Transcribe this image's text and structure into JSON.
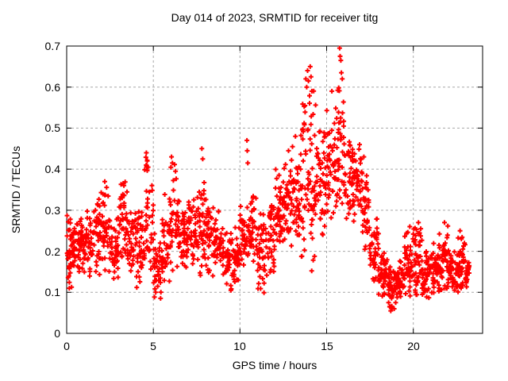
{
  "chart_data": {
    "type": "scatter",
    "title": "Day 014 of 2023, SRMTID for receiver titg",
    "xlabel": "GPS time / hours",
    "ylabel": "SRMTID / TECUs",
    "xlim": [
      0,
      24
    ],
    "ylim": [
      0,
      0.7
    ],
    "x_ticks": [
      0,
      5,
      10,
      15,
      20
    ],
    "y_ticks": [
      0,
      0.1,
      0.2,
      0.3,
      0.4,
      0.5,
      0.6,
      0.7
    ],
    "x_tick_labels": [
      "0",
      "5",
      "10",
      "15",
      "20"
    ],
    "y_tick_labels": [
      "0",
      "0.1",
      "0.2",
      "0.3",
      "0.4",
      "0.5",
      "0.6",
      "0.7"
    ],
    "grid": "dashed",
    "legend": "none",
    "marker": "plus",
    "marker_color": "#ff0000",
    "grid_color": "#a8a8a8",
    "border_color": "#000000",
    "background_color": "#ffffff",
    "data_time_range_hours": [
      0,
      23.25
    ],
    "density_bands_format": [
      "t_start_hours",
      "t_end_hours",
      "y_min_TECUs",
      "y_max_TECUs",
      "approx_point_count"
    ],
    "density_bands": [
      [
        0.0,
        0.3,
        0.1,
        0.3,
        30
      ],
      [
        0.3,
        0.5,
        0.15,
        0.28,
        22
      ],
      [
        0.5,
        1.0,
        0.14,
        0.28,
        40
      ],
      [
        1.0,
        1.5,
        0.13,
        0.31,
        40
      ],
      [
        1.5,
        2.0,
        0.14,
        0.35,
        40
      ],
      [
        2.0,
        2.5,
        0.13,
        0.37,
        40
      ],
      [
        2.5,
        3.0,
        0.12,
        0.29,
        40
      ],
      [
        3.0,
        3.5,
        0.15,
        0.37,
        40
      ],
      [
        3.5,
        4.0,
        0.14,
        0.33,
        40
      ],
      [
        4.0,
        4.5,
        0.1,
        0.31,
        40
      ],
      [
        4.5,
        5.0,
        0.15,
        0.44,
        40
      ],
      [
        5.0,
        5.5,
        0.08,
        0.26,
        40
      ],
      [
        5.5,
        6.0,
        0.12,
        0.34,
        40
      ],
      [
        6.0,
        6.5,
        0.15,
        0.42,
        40
      ],
      [
        6.5,
        7.0,
        0.15,
        0.31,
        40
      ],
      [
        7.0,
        7.5,
        0.16,
        0.34,
        40
      ],
      [
        7.5,
        8.0,
        0.13,
        0.4,
        40
      ],
      [
        8.0,
        8.5,
        0.14,
        0.35,
        40
      ],
      [
        8.5,
        9.0,
        0.13,
        0.3,
        40
      ],
      [
        9.0,
        9.5,
        0.1,
        0.26,
        40
      ],
      [
        9.5,
        10.0,
        0.12,
        0.26,
        40
      ],
      [
        10.0,
        10.5,
        0.15,
        0.32,
        40
      ],
      [
        10.5,
        11.0,
        0.17,
        0.34,
        40
      ],
      [
        11.0,
        11.5,
        0.09,
        0.3,
        40
      ],
      [
        11.5,
        12.0,
        0.13,
        0.33,
        40
      ],
      [
        12.0,
        12.5,
        0.19,
        0.4,
        40
      ],
      [
        12.5,
        13.0,
        0.2,
        0.44,
        40
      ],
      [
        13.0,
        13.5,
        0.22,
        0.46,
        40
      ],
      [
        13.5,
        14.0,
        0.18,
        0.58,
        40
      ],
      [
        14.0,
        14.5,
        0.15,
        0.6,
        42
      ],
      [
        14.5,
        15.0,
        0.22,
        0.5,
        40
      ],
      [
        15.0,
        15.5,
        0.27,
        0.55,
        40
      ],
      [
        15.5,
        16.0,
        0.28,
        0.6,
        40
      ],
      [
        16.0,
        16.5,
        0.28,
        0.48,
        40
      ],
      [
        16.5,
        17.0,
        0.25,
        0.47,
        40
      ],
      [
        17.0,
        17.5,
        0.18,
        0.42,
        40
      ],
      [
        17.5,
        18.0,
        0.12,
        0.3,
        40
      ],
      [
        18.0,
        18.5,
        0.08,
        0.2,
        42
      ],
      [
        18.5,
        19.0,
        0.06,
        0.17,
        44
      ],
      [
        19.0,
        19.5,
        0.08,
        0.18,
        44
      ],
      [
        19.5,
        20.0,
        0.09,
        0.25,
        44
      ],
      [
        20.0,
        20.5,
        0.09,
        0.26,
        44
      ],
      [
        20.5,
        21.0,
        0.08,
        0.2,
        44
      ],
      [
        21.0,
        21.5,
        0.09,
        0.22,
        44
      ],
      [
        21.5,
        22.0,
        0.1,
        0.27,
        44
      ],
      [
        22.0,
        22.5,
        0.09,
        0.22,
        44
      ],
      [
        22.5,
        23.0,
        0.1,
        0.25,
        44
      ],
      [
        23.0,
        23.25,
        0.1,
        0.18,
        22
      ]
    ],
    "peak_points_format": [
      "t_hours",
      "y_TECUs"
    ],
    "peak_points": [
      [
        0.15,
        0.11
      ],
      [
        2.2,
        0.37
      ],
      [
        3.3,
        0.36
      ],
      [
        4.6,
        0.44
      ],
      [
        4.65,
        0.42
      ],
      [
        4.7,
        0.405
      ],
      [
        6.05,
        0.43
      ],
      [
        6.1,
        0.415
      ],
      [
        7.8,
        0.45
      ],
      [
        7.85,
        0.425
      ],
      [
        10.4,
        0.47
      ],
      [
        10.42,
        0.445
      ],
      [
        10.45,
        0.415
      ],
      [
        12.8,
        0.445
      ],
      [
        13.2,
        0.48
      ],
      [
        13.75,
        0.555
      ],
      [
        13.8,
        0.62
      ],
      [
        13.85,
        0.6
      ],
      [
        13.9,
        0.64
      ],
      [
        13.95,
        0.615
      ],
      [
        14.05,
        0.65
      ],
      [
        14.1,
        0.625
      ],
      [
        14.15,
        0.59
      ],
      [
        15.3,
        0.59
      ],
      [
        15.75,
        0.695
      ],
      [
        15.78,
        0.675
      ],
      [
        15.82,
        0.665
      ],
      [
        15.85,
        0.635
      ],
      [
        15.9,
        0.62
      ],
      [
        16.9,
        0.46
      ],
      [
        17.15,
        0.43
      ],
      [
        18.7,
        0.055
      ],
      [
        18.9,
        0.06
      ],
      [
        19.8,
        0.26
      ],
      [
        20.3,
        0.27
      ],
      [
        21.8,
        0.27
      ],
      [
        22.7,
        0.25
      ]
    ]
  }
}
